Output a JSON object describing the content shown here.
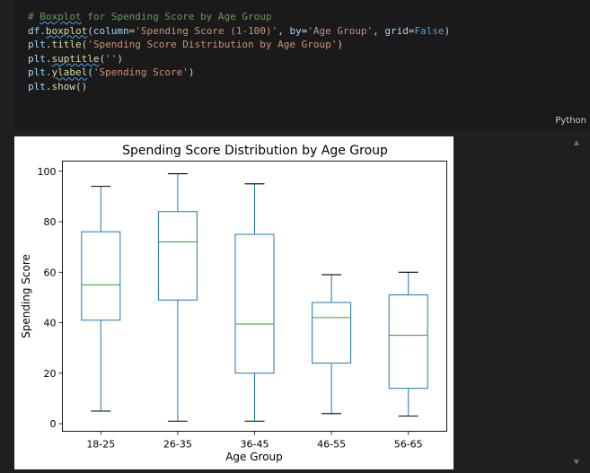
{
  "code_cell": {
    "lines": [
      [
        {
          "t": "# ",
          "c": "c-comment"
        },
        {
          "t": "Boxplot",
          "c": "c-comment squiggle"
        },
        {
          "t": " for Spending Score by Age Group",
          "c": "c-comment"
        }
      ],
      [
        {
          "t": "df",
          "c": "c-var"
        },
        {
          "t": ".",
          "c": "c-punc"
        },
        {
          "t": "boxplot",
          "c": "c-func squiggle"
        },
        {
          "t": "(",
          "c": "c-punc"
        },
        {
          "t": "column",
          "c": "c-param"
        },
        {
          "t": "=",
          "c": "c-punc"
        },
        {
          "t": "'Spending Score (1-100)'",
          "c": "c-str"
        },
        {
          "t": ", ",
          "c": "c-punc"
        },
        {
          "t": "by",
          "c": "c-param"
        },
        {
          "t": "=",
          "c": "c-punc"
        },
        {
          "t": "'Age Group'",
          "c": "c-str"
        },
        {
          "t": ", ",
          "c": "c-punc"
        },
        {
          "t": "grid",
          "c": "c-param"
        },
        {
          "t": "=",
          "c": "c-punc"
        },
        {
          "t": "False",
          "c": "c-kw"
        },
        {
          "t": ")",
          "c": "c-punc"
        }
      ],
      [
        {
          "t": "plt",
          "c": "c-var"
        },
        {
          "t": ".",
          "c": "c-punc"
        },
        {
          "t": "title",
          "c": "c-func"
        },
        {
          "t": "(",
          "c": "c-punc"
        },
        {
          "t": "'Spending Score Distribution by Age Group'",
          "c": "c-str"
        },
        {
          "t": ")",
          "c": "c-punc"
        }
      ],
      [
        {
          "t": "plt",
          "c": "c-var"
        },
        {
          "t": ".",
          "c": "c-punc"
        },
        {
          "t": "suptitle",
          "c": "c-func squiggle"
        },
        {
          "t": "(",
          "c": "c-punc"
        },
        {
          "t": "''",
          "c": "c-str"
        },
        {
          "t": ")",
          "c": "c-punc"
        }
      ],
      [
        {
          "t": "plt",
          "c": "c-var"
        },
        {
          "t": ".",
          "c": "c-punc"
        },
        {
          "t": "ylabel",
          "c": "c-func squiggle"
        },
        {
          "t": "(",
          "c": "c-punc"
        },
        {
          "t": "'Spending Score'",
          "c": "c-str"
        },
        {
          "t": ")",
          "c": "c-punc"
        }
      ],
      [
        {
          "t": "plt",
          "c": "c-var"
        },
        {
          "t": ".",
          "c": "c-punc"
        },
        {
          "t": "show",
          "c": "c-func"
        },
        {
          "t": "()",
          "c": "c-punc"
        }
      ]
    ],
    "language_label": "Python"
  },
  "colors": {
    "box": "#1f77b4",
    "median": "#2ca02c",
    "whisker_cap": "#000000"
  },
  "chart_data": {
    "type": "boxplot",
    "title": "Spending Score Distribution by Age Group",
    "xlabel": "Age Group",
    "ylabel": "Spending Score",
    "categories": [
      "18-25",
      "26-35",
      "36-45",
      "46-55",
      "56-65"
    ],
    "boxes": [
      {
        "category": "18-25",
        "min": 5,
        "q1": 41,
        "median": 55,
        "q3": 76,
        "max": 94
      },
      {
        "category": "26-35",
        "min": 1,
        "q1": 49,
        "median": 72,
        "q3": 84,
        "max": 99
      },
      {
        "category": "36-45",
        "min": 1,
        "q1": 20,
        "median": 39.5,
        "q3": 75,
        "max": 95
      },
      {
        "category": "46-55",
        "min": 4,
        "q1": 24,
        "median": 42,
        "q3": 48,
        "max": 59
      },
      {
        "category": "56-65",
        "min": 3,
        "q1": 14,
        "median": 35,
        "q3": 51,
        "max": 60
      }
    ],
    "ylim": [
      -3,
      104
    ],
    "yticks": [
      "0",
      "20",
      "40",
      "60",
      "80",
      "100"
    ],
    "grid": false
  }
}
